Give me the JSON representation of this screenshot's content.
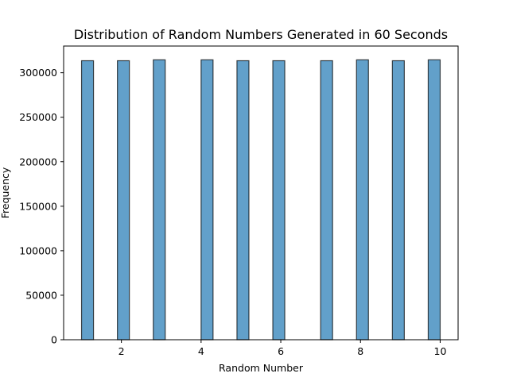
{
  "chart_data": {
    "type": "bar",
    "title": "Distribution of Random Numbers Generated in 60 Seconds",
    "xlabel": "Random Number",
    "ylabel": "Frequency",
    "xlim": [
      0.55,
      10.45
    ],
    "ylim": [
      0,
      330000
    ],
    "x_ticks": [
      2,
      4,
      6,
      8,
      10
    ],
    "y_ticks": [
      0,
      50000,
      100000,
      150000,
      200000,
      250000,
      300000
    ],
    "bin_width": 0.3,
    "bins": [
      {
        "x": 1.15,
        "value": 313500
      },
      {
        "x": 2.05,
        "value": 313500
      },
      {
        "x": 2.95,
        "value": 314500
      },
      {
        "x": 4.15,
        "value": 314500
      },
      {
        "x": 5.05,
        "value": 313500
      },
      {
        "x": 5.95,
        "value": 313500
      },
      {
        "x": 7.15,
        "value": 313500
      },
      {
        "x": 8.05,
        "value": 314500
      },
      {
        "x": 8.95,
        "value": 313500
      },
      {
        "x": 9.85,
        "value": 314500
      }
    ],
    "grid": false,
    "legend": "none"
  }
}
